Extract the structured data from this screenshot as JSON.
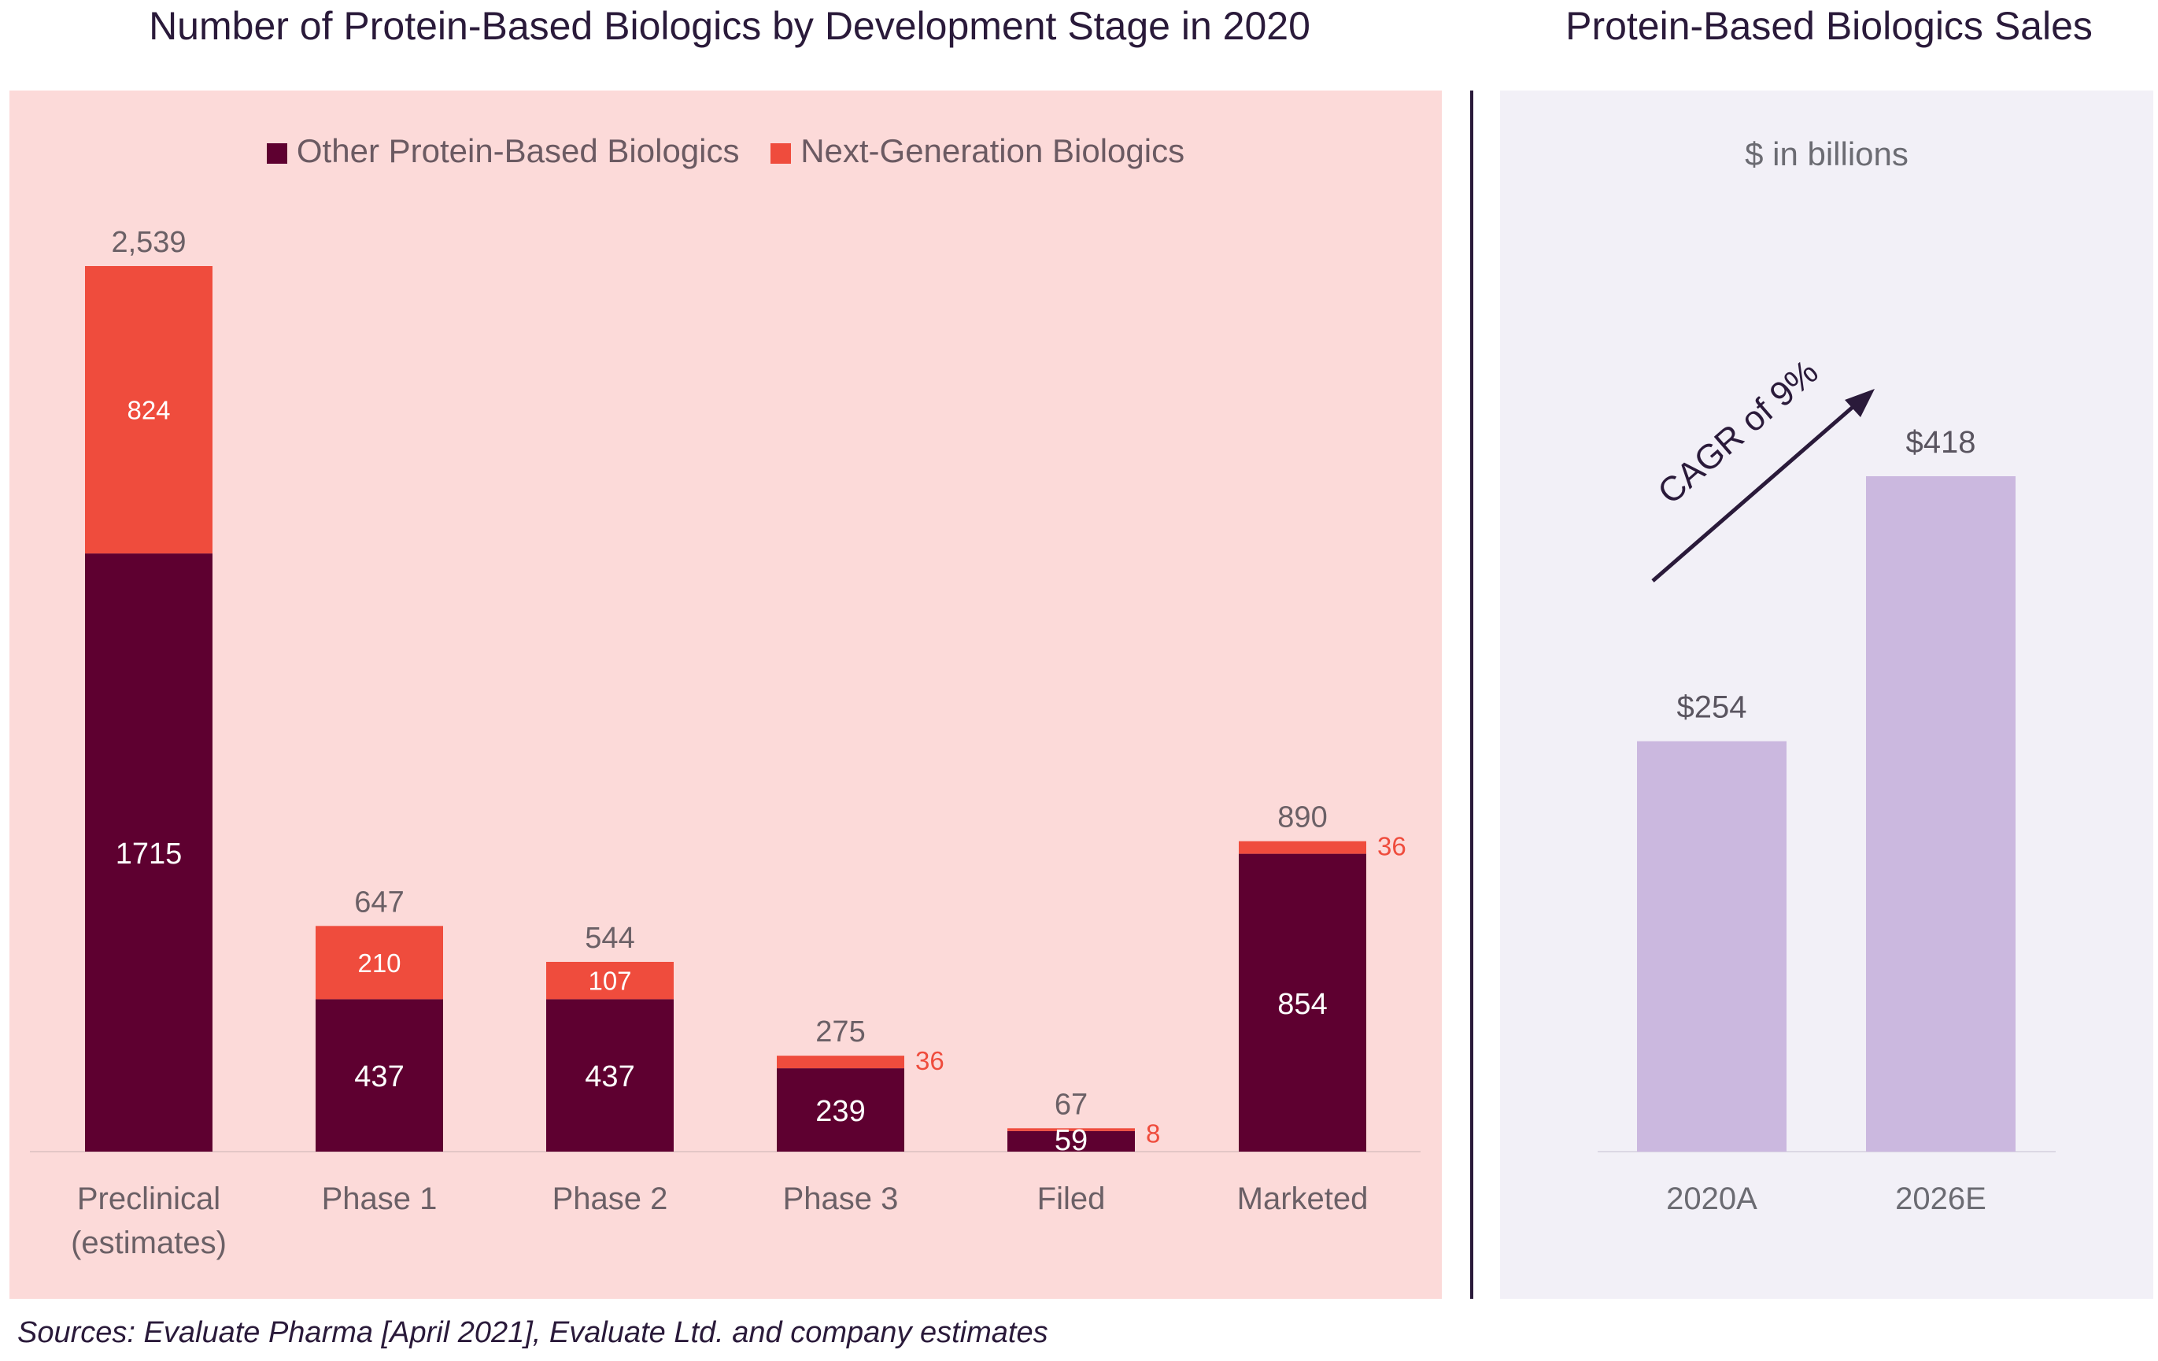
{
  "titles": {
    "left": "Number of Protein-Based Biologics by Development Stage in 2020",
    "right": "Protein-Based Biologics Sales"
  },
  "source": "Sources: Evaluate Pharma [April 2021], Evaluate Ltd. and company estimates",
  "units_label": "$ in billions",
  "cagr_label": "CAGR of 9%",
  "colors": {
    "other": "#5e0030",
    "next_gen": "#ef4c3d",
    "sales_bar": "#cbb8df",
    "left_bg": "#fcdad9",
    "right_bg": "#f2f0f7",
    "arrow": "#2a1a3a"
  },
  "chart_data": [
    {
      "type": "bar",
      "stacked": true,
      "title": "Number of Protein-Based Biologics by Development Stage in 2020",
      "categories": [
        "Preclinical (estimates)",
        "Phase 1",
        "Phase 2",
        "Phase 3",
        "Filed",
        "Marketed"
      ],
      "category_lines": [
        [
          "Preclinical",
          "(estimates)"
        ],
        [
          "Phase 1"
        ],
        [
          "Phase 2"
        ],
        [
          "Phase 3"
        ],
        [
          "Filed"
        ],
        [
          "Marketed"
        ]
      ],
      "series": [
        {
          "name": "Other Protein-Based Biologics",
          "values": [
            1715,
            437,
            437,
            239,
            59,
            854
          ]
        },
        {
          "name": "Next-Generation Biologics",
          "values": [
            824,
            210,
            107,
            36,
            8,
            36
          ]
        }
      ],
      "totals": [
        "2,539",
        "647",
        "544",
        "275",
        "67",
        "890"
      ],
      "legend": "top",
      "grid": false,
      "ylim": [
        0,
        2539
      ]
    },
    {
      "type": "bar",
      "title": "Protein-Based Biologics Sales",
      "ylabel": "$ in billions",
      "categories": [
        "2020A",
        "2026E"
      ],
      "values": [
        254,
        418
      ],
      "value_labels": [
        "$254",
        "$418"
      ],
      "annotation": "CAGR of 9%",
      "grid": false,
      "ylim": [
        0,
        418
      ]
    }
  ]
}
